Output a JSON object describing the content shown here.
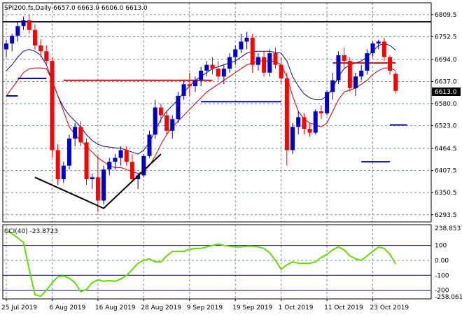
{
  "header": {
    "text": "SPI200.fs,Daily  6657.0 6663.0 6606.0 6613.0"
  },
  "colors": {
    "background": "#ffffff",
    "grid": "#7f8c96",
    "axis": "#000000",
    "bull": "#0000cc",
    "bear": "#ff0000",
    "upper_band": "#0a0a80",
    "lower_band": "#cc0000",
    "trend_line": "#000000",
    "support_res": "#d01010",
    "blue_levels": "#0000cc",
    "cci_line": "#66dd00",
    "cci_levels": "#0a0a80",
    "price_tag_bg": "#000000",
    "price_tag_fg": "#ffffff"
  },
  "chart_data": [
    {
      "type": "candlestick",
      "title": "SPI200.fs,Daily",
      "ohlc_readout": {
        "open": 6657.0,
        "high": 6663.0,
        "low": 6606.0,
        "close": 6613.0
      },
      "current_price_label": "6613.0",
      "ylim": [
        6275,
        6840
      ],
      "y_ticks": [
        6809.5,
        6752.5,
        6694.0,
        6637.0,
        6580.0,
        6523.0,
        6464.5,
        6407.5,
        6350.5,
        6293.5
      ],
      "y_tick_labels": [
        "6809.5",
        "6752.5",
        "6694.0",
        "6637.0",
        "6580.0",
        "6523.0",
        "6464.5",
        "6407.5",
        "6350.5",
        "6293.5"
      ],
      "x_labels": [
        "25 Jul 2019",
        "6 Aug 2019",
        "16 Aug 2019",
        "28 Aug 2019",
        "9 Sep 2019",
        "19 Sep 2019",
        "1 Oct 2019",
        "11 Oct 2019",
        "23 Oct 2019"
      ],
      "x_label_bars": [
        0,
        8,
        16,
        24,
        32,
        40,
        48,
        56,
        64
      ],
      "horizontal_line": 6791,
      "candles": [
        [
          6720,
          6745,
          6700,
          6735
        ],
        [
          6735,
          6760,
          6715,
          6755
        ],
        [
          6755,
          6790,
          6740,
          6780
        ],
        [
          6780,
          6805,
          6770,
          6795
        ],
        [
          6795,
          6810,
          6760,
          6770
        ],
        [
          6770,
          6785,
          6720,
          6730
        ],
        [
          6730,
          6745,
          6700,
          6715
        ],
        [
          6715,
          6730,
          6680,
          6690
        ],
        [
          6690,
          6700,
          6440,
          6460
        ],
        [
          6460,
          6475,
          6370,
          6385
        ],
        [
          6385,
          6430,
          6375,
          6420
        ],
        [
          6420,
          6500,
          6410,
          6490
        ],
        [
          6490,
          6530,
          6470,
          6520
        ],
        [
          6520,
          6535,
          6470,
          6480
        ],
        [
          6480,
          6490,
          6370,
          6385
        ],
        [
          6385,
          6400,
          6360,
          6390
        ],
        [
          6390,
          6445,
          6300,
          6330
        ],
        [
          6330,
          6420,
          6320,
          6410
        ],
        [
          6410,
          6440,
          6395,
          6430
        ],
        [
          6430,
          6450,
          6410,
          6440
        ],
        [
          6440,
          6470,
          6420,
          6460
        ],
        [
          6460,
          6470,
          6420,
          6430
        ],
        [
          6430,
          6450,
          6380,
          6385
        ],
        [
          6385,
          6400,
          6360,
          6395
        ],
        [
          6395,
          6450,
          6390,
          6445
        ],
        [
          6445,
          6510,
          6440,
          6500
        ],
        [
          6500,
          6590,
          6490,
          6570
        ],
        [
          6570,
          6580,
          6530,
          6550
        ],
        [
          6550,
          6560,
          6500,
          6510
        ],
        [
          6510,
          6550,
          6490,
          6540
        ],
        [
          6540,
          6610,
          6530,
          6600
        ],
        [
          6600,
          6640,
          6590,
          6630
        ],
        [
          6630,
          6660,
          6600,
          6625
        ],
        [
          6625,
          6650,
          6610,
          6640
        ],
        [
          6640,
          6675,
          6625,
          6665
        ],
        [
          6665,
          6690,
          6650,
          6680
        ],
        [
          6680,
          6700,
          6655,
          6670
        ],
        [
          6670,
          6690,
          6640,
          6650
        ],
        [
          6650,
          6680,
          6630,
          6670
        ],
        [
          6670,
          6710,
          6660,
          6700
        ],
        [
          6700,
          6730,
          6680,
          6720
        ],
        [
          6720,
          6760,
          6710,
          6740
        ],
        [
          6740,
          6765,
          6720,
          6750
        ],
        [
          6750,
          6760,
          6660,
          6680
        ],
        [
          6680,
          6710,
          6665,
          6700
        ],
        [
          6700,
          6715,
          6650,
          6660
        ],
        [
          6660,
          6720,
          6650,
          6710
        ],
        [
          6710,
          6725,
          6670,
          6680
        ],
        [
          6680,
          6700,
          6630,
          6645
        ],
        [
          6645,
          6660,
          6420,
          6460
        ],
        [
          6460,
          6530,
          6450,
          6520
        ],
        [
          6520,
          6560,
          6500,
          6545
        ],
        [
          6545,
          6555,
          6500,
          6515
        ],
        [
          6515,
          6530,
          6495,
          6505
        ],
        [
          6505,
          6565,
          6500,
          6560
        ],
        [
          6560,
          6575,
          6540,
          6555
        ],
        [
          6555,
          6615,
          6550,
          6610
        ],
        [
          6610,
          6660,
          6590,
          6640
        ],
        [
          6640,
          6715,
          6630,
          6705
        ],
        [
          6705,
          6725,
          6670,
          6690
        ],
        [
          6690,
          6700,
          6610,
          6620
        ],
        [
          6620,
          6660,
          6600,
          6650
        ],
        [
          6650,
          6680,
          6640,
          6665
        ],
        [
          6665,
          6720,
          6655,
          6710
        ],
        [
          6710,
          6740,
          6700,
          6735
        ],
        [
          6735,
          6745,
          6720,
          6740
        ],
        [
          6740,
          6750,
          6690,
          6700
        ],
        [
          6700,
          6705,
          6655,
          6665
        ],
        [
          6657,
          6663,
          6606,
          6613
        ]
      ],
      "upper_band": [
        6665,
        6680,
        6700,
        6715,
        6720,
        6715,
        6705,
        6680,
        6640,
        6600,
        6570,
        6550,
        6535,
        6520,
        6500,
        6485,
        6475,
        6470,
        6468,
        6466,
        6465,
        6460,
        6455,
        6450,
        6460,
        6480,
        6510,
        6540,
        6560,
        6575,
        6590,
        6610,
        6625,
        6640,
        6650,
        6660,
        6670,
        6675,
        6680,
        6685,
        6690,
        6700,
        6710,
        6715,
        6715,
        6715,
        6715,
        6712,
        6710,
        6690,
        6650,
        6625,
        6605,
        6595,
        6590,
        6590,
        6600,
        6620,
        6650,
        6670,
        6680,
        6685,
        6690,
        6700,
        6715,
        6730,
        6735,
        6730,
        6718
      ],
      "lower_band": [
        6600,
        6620,
        6640,
        6660,
        6670,
        6672,
        6672,
        6670,
        6640,
        6600,
        6560,
        6520,
        6500,
        6485,
        6470,
        6455,
        6440,
        6430,
        6420,
        6415,
        6415,
        6410,
        6405,
        6400,
        6405,
        6420,
        6445,
        6475,
        6500,
        6520,
        6535,
        6550,
        6565,
        6580,
        6595,
        6610,
        6620,
        6630,
        6640,
        6650,
        6660,
        6670,
        6680,
        6685,
        6690,
        6690,
        6690,
        6688,
        6680,
        6650,
        6600,
        6560,
        6540,
        6530,
        6525,
        6520,
        6530,
        6560,
        6590,
        6610,
        6615,
        6620,
        6630,
        6640,
        6655,
        6665,
        6672,
        6672,
        6665
      ],
      "support_resistance_segments": [
        {
          "from_bar": 10,
          "to_bar": 36,
          "value": 6640
        },
        {
          "from_bar": 57,
          "to_bar": 68,
          "value": 6685
        },
        {
          "from_bar": 57,
          "to_bar": 57,
          "value": 6730
        }
      ],
      "blue_level_segments": [
        {
          "from_bar": 0,
          "to_bar": 2,
          "value": 6600
        },
        {
          "from_bar": 2,
          "to_bar": 7,
          "value": 6645
        },
        {
          "from_bar": 34,
          "to_bar": 48,
          "value": 6585
        },
        {
          "from_bar": 62,
          "to_bar": 67,
          "value": 6430
        },
        {
          "from_bar": 67,
          "to_bar": 70,
          "value": 6525
        }
      ],
      "trend_line_bars": [
        [
          5,
          6390
        ],
        [
          17,
          6310
        ],
        [
          27,
          6450
        ]
      ]
    },
    {
      "type": "line",
      "title": "CCI(40) -23.8723",
      "current_value_label": "238.8537",
      "ylim": [
        -258.0615,
        238.8537
      ],
      "y_ticks": [
        238.8537,
        100,
        0,
        -100,
        -200,
        -258.0615
      ],
      "y_tick_labels": [
        "238.8537",
        "100",
        "0.00",
        "-100",
        "-200",
        "-258.0615"
      ],
      "levels": [
        100,
        -100,
        -200
      ],
      "series": [
        {
          "values": [
            200,
            180,
            150,
            120,
            -60,
            -230,
            -240,
            -200,
            -150,
            -110,
            -105,
            -120,
            -150,
            -210,
            -195,
            -150,
            -130,
            -140,
            -135,
            -140,
            -125,
            -100,
            -60,
            -20,
            0,
            10,
            -10,
            -10,
            30,
            60,
            60,
            60,
            75,
            80,
            80,
            90,
            100,
            110,
            100,
            95,
            90,
            90,
            95,
            95,
            90,
            80,
            50,
            0,
            -60,
            -30,
            -10,
            -20,
            -20,
            -20,
            -10,
            20,
            40,
            70,
            90,
            70,
            30,
            10,
            0,
            30,
            60,
            90,
            80,
            40,
            -24
          ]
        }
      ]
    }
  ]
}
